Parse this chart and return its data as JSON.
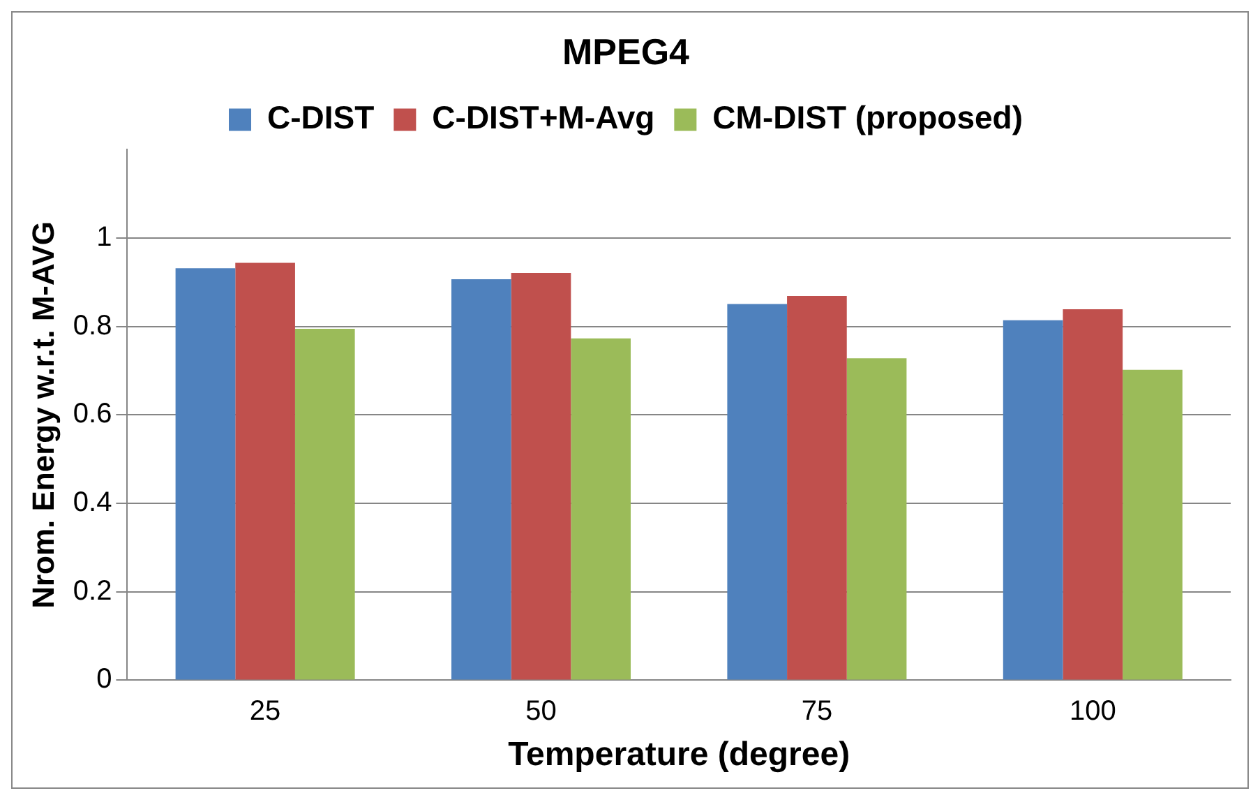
{
  "chart_data": {
    "type": "bar",
    "title": "MPEG4",
    "xlabel": "Temperature (degree)",
    "ylabel": "Nrom. Energy w.r.t. M-AVG",
    "categories": [
      "25",
      "50",
      "75",
      "100"
    ],
    "series": [
      {
        "name": "C-DIST",
        "color": "#4f81bd",
        "values": [
          0.932,
          0.907,
          0.851,
          0.814
        ]
      },
      {
        "name": "C-DIST+M-Avg",
        "color": "#c0504d",
        "values": [
          0.944,
          0.921,
          0.869,
          0.839
        ]
      },
      {
        "name": "CM-DIST (proposed)",
        "color": "#9bbb59",
        "values": [
          0.795,
          0.773,
          0.728,
          0.702
        ]
      }
    ],
    "ylim": [
      0,
      1.2
    ],
    "yticks": [
      0,
      0.2,
      0.4,
      0.6,
      0.8,
      1
    ],
    "grid": "y",
    "legend": "top"
  }
}
